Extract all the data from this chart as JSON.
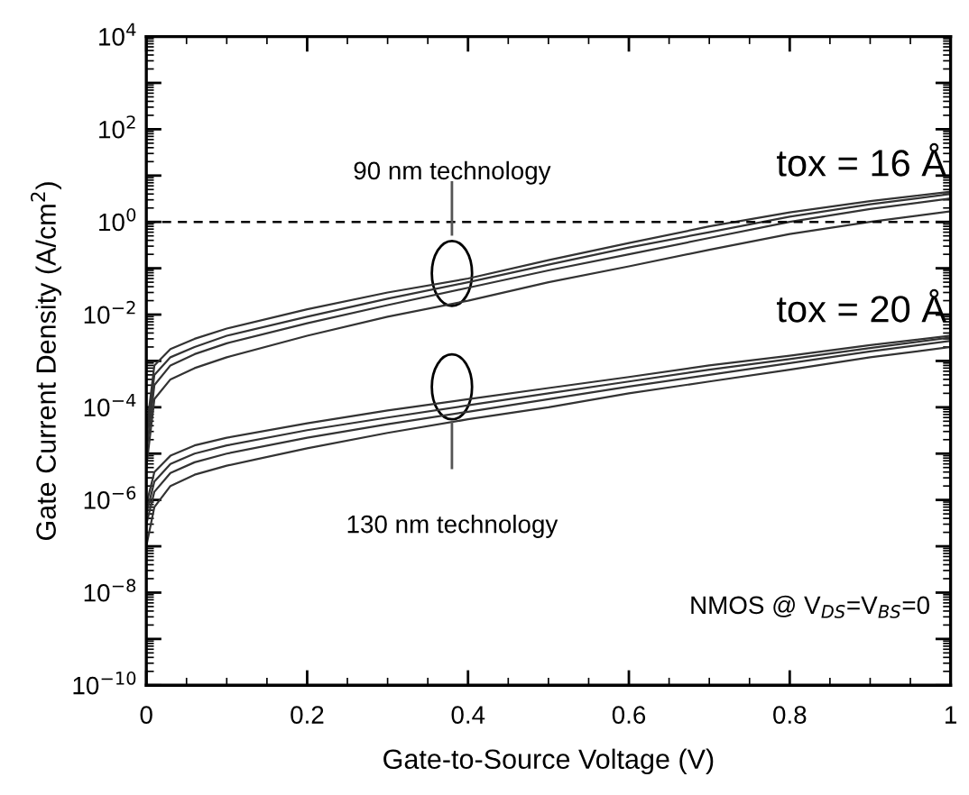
{
  "chart_data": {
    "type": "line",
    "xlabel": "Gate-to-Source Voltage (V)",
    "ylabel": "Gate Current Density (A/cm$^{2}$)",
    "x": [
      0,
      0.01,
      0.03,
      0.06,
      0.1,
      0.2,
      0.3,
      0.4,
      0.5,
      0.6,
      0.7,
      0.8,
      0.9,
      1.0
    ],
    "series": [
      {
        "color": "#333333",
        "values": [
          3e-05,
          0.0008,
          0.0018,
          0.003,
          0.005,
          0.013,
          0.03,
          0.06,
          0.15,
          0.35,
          0.8,
          1.6,
          2.8,
          4.5
        ]
      },
      {
        "color": "#333333",
        "values": [
          2e-05,
          0.0005,
          0.0012,
          0.002,
          0.0035,
          0.009,
          0.022,
          0.05,
          0.12,
          0.28,
          0.6,
          1.3,
          2.4,
          4.0
        ]
      },
      {
        "color": "#333333",
        "values": [
          1e-05,
          0.0003,
          0.0008,
          0.0014,
          0.0024,
          0.0065,
          0.016,
          0.038,
          0.09,
          0.2,
          0.45,
          1.0,
          1.9,
          3.2
        ]
      },
      {
        "color": "#333333",
        "values": [
          5e-06,
          0.00015,
          0.0004,
          0.0007,
          0.0012,
          0.0035,
          0.009,
          0.02,
          0.05,
          0.11,
          0.25,
          0.55,
          1.0,
          1.7
        ]
      },
      {
        "color": "#333333",
        "values": [
          8e-07,
          4e-06,
          9e-06,
          1.5e-05,
          2.2e-05,
          4.5e-05,
          8.5e-05,
          0.00015,
          0.00026,
          0.00045,
          0.0008,
          0.0013,
          0.0022,
          0.0035
        ]
      },
      {
        "color": "#333333",
        "values": [
          5e-07,
          2.5e-06,
          6e-06,
          1e-05,
          1.5e-05,
          3.2e-05,
          6e-05,
          0.00011,
          0.0002,
          0.00036,
          0.00065,
          0.0011,
          0.0019,
          0.0032
        ]
      },
      {
        "color": "#333333",
        "values": [
          3e-07,
          1.5e-06,
          3.8e-06,
          6.5e-06,
          1e-05,
          2.2e-05,
          4.3e-05,
          8e-05,
          0.00015,
          0.00028,
          0.0005,
          0.0009,
          0.0016,
          0.0027
        ]
      },
      {
        "color": "#333333",
        "values": [
          1e-07,
          7e-07,
          2e-06,
          3.5e-06,
          5.5e-06,
          1.3e-05,
          2.8e-05,
          5.5e-05,
          0.0001,
          0.0002,
          0.00036,
          0.00065,
          0.0012,
          0.002
        ]
      }
    ],
    "log": "y",
    "xlim": [
      0,
      1
    ],
    "ylim": [
      1e-10,
      10000.0
    ],
    "xticks": [
      {
        "value": 0,
        "label": "0"
      },
      0.2,
      0.4,
      0.6,
      0.8,
      {
        "value": 1,
        "label": "1"
      }
    ],
    "yticks": [
      {
        "value": 1e-10,
        "label": "10$^{−10}$"
      },
      {
        "value": 1e-09,
        "label": null
      },
      {
        "value": 1e-08,
        "label": "10$^{−8}$"
      },
      {
        "value": 1e-07,
        "label": null
      },
      {
        "value": 1e-06,
        "label": "10$^{−6}$"
      },
      {
        "value": 1e-05,
        "label": null
      },
      {
        "value": 0.0001,
        "label": "10$^{−4}$"
      },
      {
        "value": 0.001,
        "label": null
      },
      {
        "value": 0.01,
        "label": "10$^{−2}$"
      },
      {
        "value": 0.1,
        "label": null
      },
      {
        "value": 1,
        "label": "10$^{0}$"
      },
      {
        "value": 10,
        "label": null
      },
      {
        "value": 100,
        "label": "10$^{2}$"
      },
      {
        "value": 1000,
        "label": null
      },
      {
        "value": 10000,
        "label": "10$^{4}$"
      }
    ],
    "ref_lines": [
      {
        "axis": "y",
        "value": 1,
        "color": "#000000",
        "line_style": "dashed"
      }
    ],
    "annotations": [
      "90 nm technology",
      "130 nm technology",
      "tox = 16 Å",
      "tox = 20 Å",
      "NMOS @ V$_{DS}$=V$_{BS}$=0"
    ],
    "grid": false,
    "legend": false,
    "marker": "none",
    "line_style": "solid"
  }
}
